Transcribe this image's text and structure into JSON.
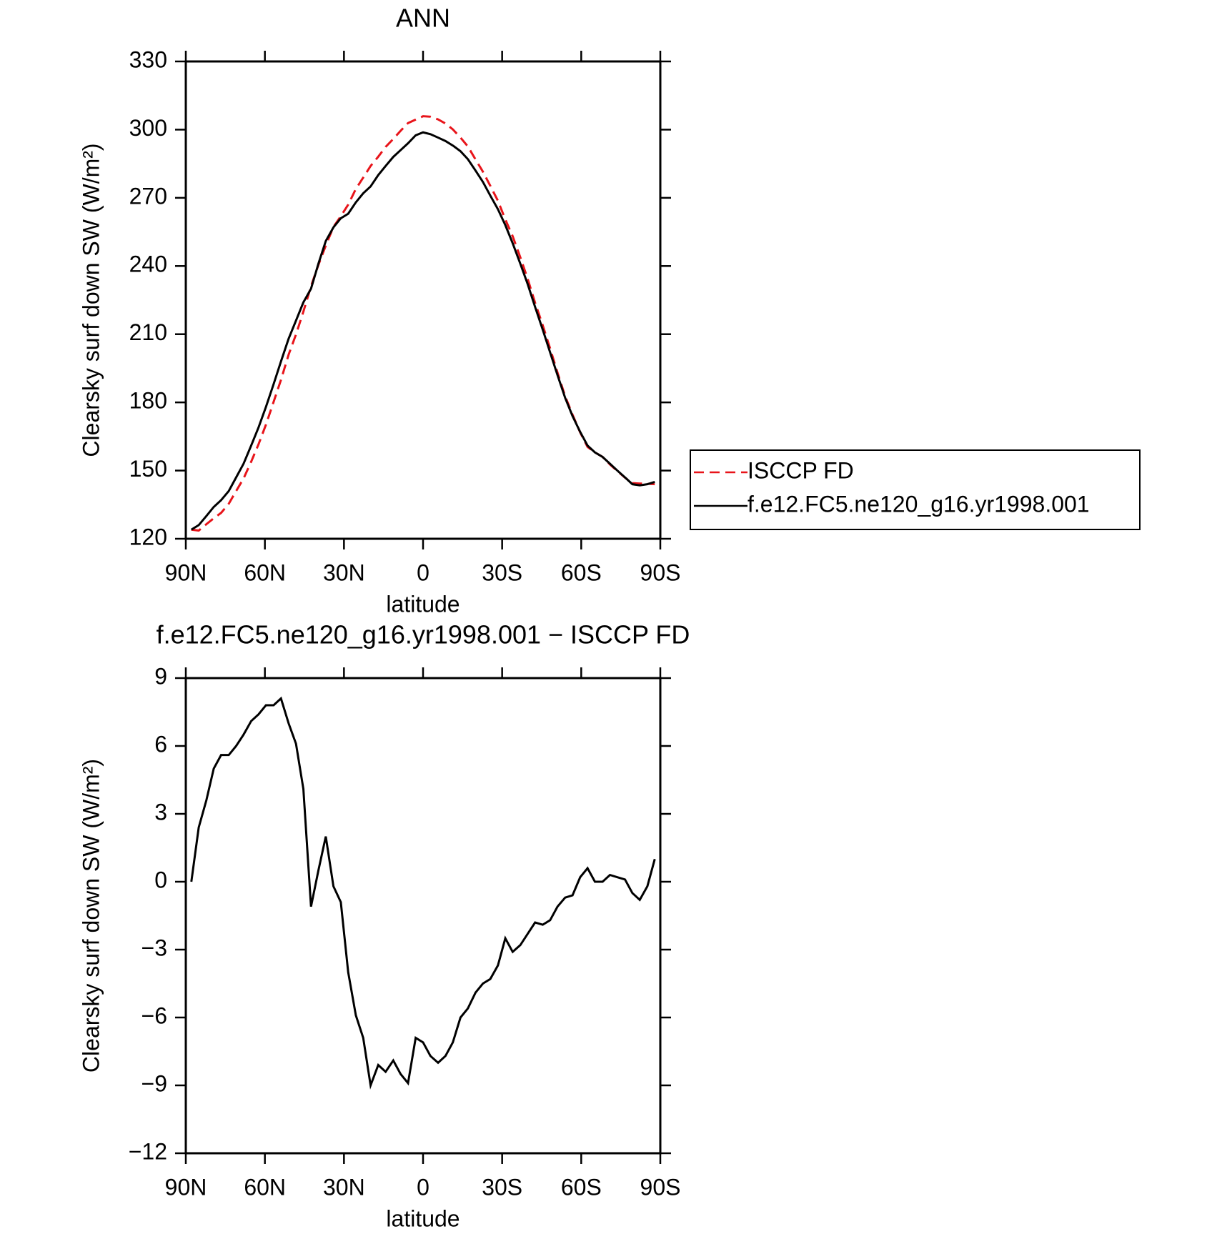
{
  "chart_data": [
    {
      "type": "line",
      "title": "ANN",
      "xlabel": "latitude",
      "ylabel": "Clearsky surf down SW (W/m²)",
      "x": [
        87.9,
        85.1,
        82.2,
        79.4,
        76.6,
        73.7,
        70.9,
        68.1,
        65.2,
        62.4,
        59.6,
        56.7,
        53.9,
        51.0,
        48.2,
        45.4,
        42.5,
        39.7,
        36.9,
        34.0,
        31.2,
        28.4,
        25.5,
        22.7,
        19.9,
        17.0,
        14.2,
        11.3,
        8.5,
        5.7,
        2.8,
        0,
        -2.8,
        -5.7,
        -8.5,
        -11.3,
        -14.2,
        -17.0,
        -19.9,
        -22.7,
        -25.5,
        -28.4,
        -31.2,
        -34.0,
        -36.9,
        -39.7,
        -42.5,
        -45.4,
        -48.2,
        -51.0,
        -53.9,
        -56.7,
        -59.6,
        -62.4,
        -65.2,
        -68.1,
        -70.9,
        -73.7,
        -76.6,
        -79.4,
        -82.2,
        -85.1,
        -87.9
      ],
      "series": [
        {
          "name": "ISCCP FD",
          "color": "#e8141a",
          "linestyle": "dashed",
          "values": [
            124,
            123.6,
            126.4,
            129,
            131.4,
            135.4,
            141,
            146.5,
            153.9,
            161.6,
            170.2,
            180.2,
            189.9,
            201,
            209.9,
            219.9,
            231.1,
            240.5,
            249,
            257.2,
            261.9,
            267,
            273.9,
            278.9,
            284,
            288.1,
            292.4,
            295.9,
            299.5,
            302.9,
            304.4,
            305.9,
            305.7,
            304.5,
            302.7,
            300.1,
            296.5,
            292.6,
            286.9,
            281.5,
            275.3,
            268.7,
            260.5,
            253.1,
            243.8,
            234.3,
            223.8,
            213.9,
            203.7,
            193.1,
            182.7,
            174.6,
            166.8,
            160.4,
            158,
            156,
            152.7,
            149.8,
            146.9,
            144.5,
            144.3,
            144.2,
            144
          ]
        },
        {
          "name": "f.e12.FC5.ne120_g16.yr1998.001",
          "color": "#000000",
          "linestyle": "solid",
          "values": [
            124,
            126,
            130,
            134,
            137,
            141,
            147,
            153,
            161,
            169,
            178,
            188,
            198,
            208,
            216,
            224,
            230,
            241,
            251,
            257,
            261,
            263,
            268,
            272,
            275,
            280,
            284,
            288,
            291,
            294,
            297.5,
            298.8,
            298,
            296.5,
            295,
            293,
            290.5,
            287,
            282,
            277,
            271,
            265,
            258,
            250,
            241,
            232,
            222,
            212,
            202,
            192,
            182,
            174,
            167,
            161,
            158,
            156,
            153,
            150,
            147,
            144,
            143.5,
            144,
            145
          ]
        }
      ],
      "xlim": [
        90,
        -90
      ],
      "xticks": [
        {
          "value": 90,
          "label": "90N"
        },
        {
          "value": 60,
          "label": "60N"
        },
        {
          "value": 30,
          "label": "30N"
        },
        0,
        {
          "value": -30,
          "label": "30S"
        },
        {
          "value": -60,
          "label": "60S"
        },
        {
          "value": -90,
          "label": "90S"
        }
      ],
      "ylim": [
        120,
        330
      ],
      "yticks": [
        120,
        150,
        180,
        210,
        240,
        270,
        300,
        330
      ],
      "legend": "outside right"
    },
    {
      "type": "line",
      "title": "f.e12.FC5.ne120_g16.yr1998.001 − ISCCP FD",
      "xlabel": "latitude",
      "ylabel": "Clearsky surf down SW (W/m²)",
      "x": [
        87.9,
        85.1,
        82.2,
        79.4,
        76.6,
        73.7,
        70.9,
        68.1,
        65.2,
        62.4,
        59.6,
        56.7,
        53.9,
        51.0,
        48.2,
        45.4,
        42.5,
        39.7,
        36.9,
        34.0,
        31.2,
        28.4,
        25.5,
        22.7,
        19.9,
        17.0,
        14.2,
        11.3,
        8.5,
        5.7,
        2.8,
        0,
        -2.8,
        -5.7,
        -8.5,
        -11.3,
        -14.2,
        -17.0,
        -19.9,
        -22.7,
        -25.5,
        -28.4,
        -31.2,
        -34.0,
        -36.9,
        -39.7,
        -42.5,
        -45.4,
        -48.2,
        -51.0,
        -53.9,
        -56.7,
        -59.6,
        -62.4,
        -65.2,
        -68.1,
        -70.9,
        -73.7,
        -76.6,
        -79.4,
        -82.2,
        -85.1,
        -87.9
      ],
      "series": [
        {
          "color": "#000000",
          "linestyle": "solid",
          "values": [
            0,
            2.4,
            3.6,
            5.0,
            5.6,
            5.6,
            6.0,
            6.5,
            7.1,
            7.4,
            7.8,
            7.8,
            8.1,
            7.0,
            6.1,
            4.1,
            -1.1,
            0.5,
            2.0,
            -0.2,
            -0.9,
            -4.0,
            -5.9,
            -6.9,
            -9.0,
            -8.1,
            -8.4,
            -7.9,
            -8.5,
            -8.9,
            -6.9,
            -7.1,
            -7.7,
            -8.0,
            -7.7,
            -7.1,
            -6.0,
            -5.6,
            -4.9,
            -4.5,
            -4.3,
            -3.7,
            -2.5,
            -3.1,
            -2.8,
            -2.3,
            -1.8,
            -1.9,
            -1.7,
            -1.1,
            -0.7,
            -0.6,
            0.2,
            0.6,
            0,
            0,
            0.3,
            0.2,
            0.1,
            -0.5,
            -0.8,
            -0.2,
            1.0
          ]
        }
      ],
      "xlim": [
        90,
        -90
      ],
      "xticks": [
        {
          "value": 90,
          "label": "90N"
        },
        {
          "value": 60,
          "label": "60N"
        },
        {
          "value": 30,
          "label": "30N"
        },
        0,
        {
          "value": -30,
          "label": "30S"
        },
        {
          "value": -60,
          "label": "60S"
        },
        {
          "value": -90,
          "label": "90S"
        }
      ],
      "ylim": [
        -12,
        9
      ],
      "yticks": [
        {
          "value": -12,
          "label": "−12"
        },
        {
          "value": -9,
          "label": "−9"
        },
        {
          "value": -6,
          "label": "−6"
        },
        {
          "value": -3,
          "label": "−3"
        },
        0,
        3,
        6,
        9
      ]
    }
  ]
}
